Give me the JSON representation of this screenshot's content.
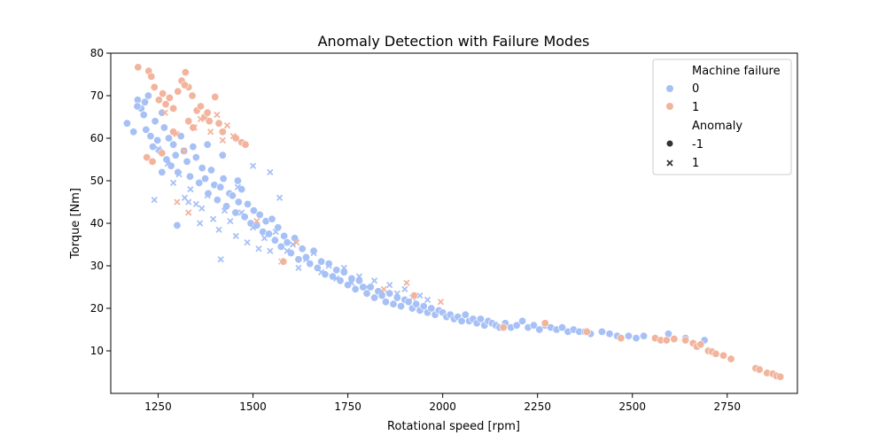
{
  "chart_data": {
    "type": "scatter",
    "title": "Anomaly Detection with Failure Modes",
    "xlabel": "Rotational speed [rpm]",
    "ylabel": "Torque [Nm]",
    "xlim": [
      1125,
      2935
    ],
    "ylim": [
      0,
      80
    ],
    "xticks": [
      1250,
      1500,
      1750,
      2000,
      2250,
      2500,
      2750
    ],
    "yticks": [
      10,
      20,
      30,
      40,
      50,
      60,
      70,
      80
    ],
    "grid": false,
    "legend": {
      "placement": "top-right",
      "hue_title": "Machine failure",
      "hue_entries": [
        {
          "label": "0",
          "color": "#a7c1f6"
        },
        {
          "label": "1",
          "color": "#f2b49c"
        }
      ],
      "style_title": "Anomaly",
      "style_entries": [
        {
          "label": "-1",
          "marker": "circle"
        },
        {
          "label": "1",
          "marker": "x"
        }
      ]
    },
    "colors": {
      "failure_0": "#a7c1f6",
      "failure_1": "#f2b49c"
    },
    "series": [
      {
        "failure": 0,
        "anomaly": -1,
        "marker": "circle",
        "color": "#a7c1f6",
        "x": [
          1168,
          1185,
          1196,
          1205,
          1212,
          1218,
          1224,
          1230,
          1236,
          1242,
          1248,
          1254,
          1260,
          1266,
          1272,
          1278,
          1284,
          1290,
          1296,
          1302,
          1310,
          1318,
          1326,
          1334,
          1342,
          1350,
          1358,
          1366,
          1374,
          1382,
          1390,
          1398,
          1406,
          1414,
          1422,
          1430,
          1438,
          1446,
          1454,
          1462,
          1470,
          1478,
          1486,
          1494,
          1502,
          1510,
          1518,
          1526,
          1534,
          1542,
          1550,
          1558,
          1566,
          1574,
          1582,
          1590,
          1600,
          1610,
          1620,
          1630,
          1640,
          1650,
          1660,
          1670,
          1680,
          1690,
          1700,
          1710,
          1720,
          1730,
          1740,
          1750,
          1760,
          1770,
          1780,
          1790,
          1800,
          1810,
          1820,
          1830,
          1840,
          1850,
          1860,
          1870,
          1880,
          1890,
          1900,
          1910,
          1920,
          1930,
          1940,
          1950,
          1960,
          1970,
          1980,
          1990,
          2000,
          2010,
          2020,
          2030,
          2040,
          2050,
          2060,
          2070,
          2080,
          2090,
          2100,
          2110,
          2120,
          2130,
          2140,
          2150,
          2165,
          2180,
          2195,
          2210,
          2225,
          2240,
          2255,
          2270,
          2285,
          2300,
          2315,
          2330,
          2345,
          2360,
          2375,
          2390,
          2420,
          2440,
          2460,
          2490,
          2510,
          2530,
          2595,
          2640,
          2690,
          1300,
          1215,
          1195,
          1260,
          1380,
          1420,
          1460
        ],
        "y": [
          63.5,
          61.5,
          69.0,
          67.0,
          65.5,
          62.0,
          70.0,
          60.5,
          58.0,
          64.0,
          59.5,
          57.0,
          66.0,
          62.5,
          55.0,
          60.0,
          53.5,
          58.5,
          56.0,
          52.0,
          60.5,
          57.0,
          54.5,
          51.0,
          58.0,
          55.5,
          49.5,
          53.0,
          50.5,
          47.0,
          52.5,
          49.0,
          45.5,
          48.5,
          50.5,
          44.0,
          47.0,
          46.5,
          42.5,
          45.0,
          48.0,
          41.5,
          44.5,
          40.0,
          43.0,
          39.5,
          42.0,
          38.0,
          40.5,
          37.5,
          41.0,
          36.0,
          39.0,
          34.5,
          37.0,
          35.5,
          33.0,
          36.5,
          31.5,
          34.0,
          32.0,
          30.5,
          33.5,
          29.5,
          31.0,
          28.0,
          30.5,
          27.5,
          29.0,
          26.5,
          28.5,
          25.5,
          27.0,
          24.5,
          26.5,
          25.0,
          23.5,
          25.0,
          22.5,
          24.0,
          23.0,
          21.5,
          23.5,
          21.0,
          22.5,
          20.5,
          22.0,
          21.5,
          20.0,
          21.0,
          19.5,
          20.5,
          19.0,
          20.0,
          18.5,
          19.5,
          19.0,
          18.0,
          18.5,
          17.5,
          18.0,
          17.0,
          18.5,
          17.0,
          17.5,
          16.5,
          17.5,
          16.0,
          17.0,
          16.5,
          16.0,
          15.5,
          16.5,
          15.5,
          16.0,
          17.0,
          15.5,
          16.0,
          15.0,
          16.0,
          15.5,
          15.0,
          15.5,
          14.5,
          15.0,
          14.5,
          14.5,
          14.0,
          14.5,
          14.0,
          13.5,
          13.5,
          13.0,
          13.5,
          14.0,
          13.0,
          12.5,
          39.5,
          68.5,
          67.5,
          52.0,
          58.5,
          56.0,
          50.0
        ]
      },
      {
        "failure": 0,
        "anomaly": 1,
        "marker": "x",
        "color": "#a7c1f6",
        "x": [
          1240,
          1250,
          1275,
          1290,
          1305,
          1320,
          1335,
          1350,
          1365,
          1380,
          1395,
          1410,
          1425,
          1440,
          1455,
          1470,
          1485,
          1500,
          1515,
          1530,
          1545,
          1560,
          1575,
          1590,
          1605,
          1620,
          1640,
          1660,
          1680,
          1700,
          1720,
          1740,
          1760,
          1780,
          1800,
          1820,
          1840,
          1860,
          1880,
          1900,
          1920,
          1940,
          1960,
          1545,
          1500,
          1460,
          1415,
          1360,
          1330,
          1570
        ],
        "y": [
          45.5,
          57.5,
          54.0,
          49.5,
          51.5,
          46.0,
          48.0,
          44.5,
          43.5,
          46.5,
          41.0,
          38.5,
          43.0,
          40.5,
          37.0,
          42.5,
          35.5,
          39.0,
          34.0,
          36.5,
          33.5,
          38.0,
          31.0,
          33.5,
          35.0,
          29.5,
          31.5,
          33.0,
          28.5,
          30.0,
          27.0,
          29.5,
          26.0,
          27.5,
          25.0,
          26.5,
          24.0,
          25.5,
          23.5,
          24.5,
          22.5,
          23.0,
          22.0,
          52.0,
          53.5,
          48.5,
          31.5,
          40.0,
          45.0,
          46.0
        ]
      },
      {
        "failure": 1,
        "anomaly": -1,
        "marker": "circle",
        "color": "#f2b49c",
        "x": [
          1197,
          1225,
          1232,
          1240,
          1252,
          1262,
          1270,
          1280,
          1290,
          1302,
          1312,
          1322,
          1330,
          1340,
          1352,
          1362,
          1372,
          1385,
          1400,
          1410,
          1420,
          1455,
          1470,
          1480,
          1220,
          1235,
          1260,
          1290,
          1330,
          1380,
          1580,
          1925,
          2160,
          2270,
          2380,
          2470,
          2560,
          2575,
          2590,
          2610,
          2640,
          2660,
          2670,
          2680,
          2700,
          2710,
          2720,
          2740,
          2760,
          2825,
          2835,
          2855,
          2870,
          2880,
          2890,
          1320,
          1342
        ],
        "y": [
          76.7,
          75.8,
          74.5,
          72.0,
          69.0,
          70.5,
          68.0,
          69.5,
          67.0,
          71.0,
          73.5,
          75.5,
          72.0,
          70.0,
          66.5,
          67.5,
          65.0,
          64.0,
          69.7,
          63.5,
          61.5,
          60.0,
          59.0,
          58.5,
          55.5,
          54.5,
          56.5,
          61.5,
          64.0,
          66.0,
          31.0,
          23.0,
          15.5,
          16.5,
          14.5,
          13.0,
          13.0,
          12.5,
          12.5,
          12.8,
          12.5,
          11.8,
          11.0,
          11.5,
          10.0,
          9.8,
          9.3,
          8.9,
          8.1,
          5.9,
          5.6,
          4.8,
          4.6,
          4.1,
          3.9,
          72.5,
          62.5
        ]
      },
      {
        "failure": 1,
        "anomaly": 1,
        "marker": "x",
        "color": "#f2b49c",
        "x": [
          1268,
          1298,
          1318,
          1345,
          1362,
          1388,
          1405,
          1420,
          1432,
          1448,
          1300,
          1330,
          1510,
          1615,
          1845,
          1905,
          1995
        ],
        "y": [
          66.0,
          61.0,
          57.0,
          62.5,
          64.5,
          61.5,
          65.5,
          59.5,
          63.0,
          60.5,
          45.0,
          42.5,
          40.5,
          35.5,
          24.5,
          26.0,
          21.5
        ]
      }
    ]
  }
}
